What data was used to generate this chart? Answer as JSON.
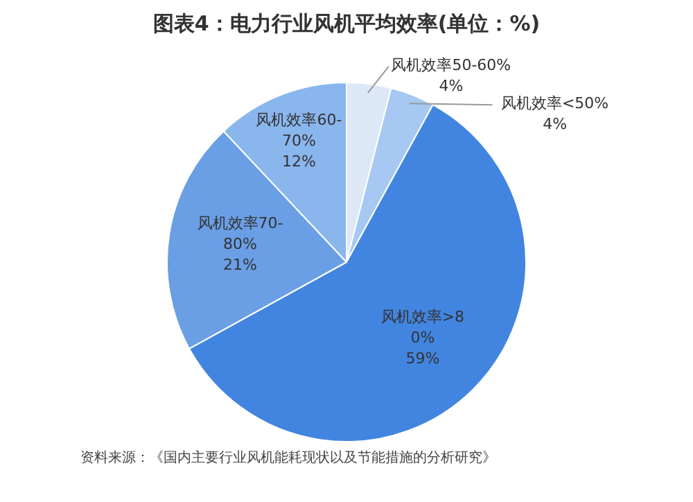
{
  "chart_data": {
    "type": "pie",
    "title": "图表4：电力行业风机平均效率(单位：%)",
    "categories": [
      "风机效率50-60%",
      "风机效率<50%",
      "风机效率>80%",
      "风机效率70-80%",
      "风机效率60-70%"
    ],
    "values": [
      4,
      4,
      59,
      21,
      12
    ],
    "colors": [
      "#dde8f7",
      "#a6c8f2",
      "#4285e0",
      "#6a9fe6",
      "#8ab6ee"
    ],
    "value_labels": [
      "4%",
      "4%",
      "59%",
      "21%",
      "12%"
    ],
    "legend": false,
    "annotations": [
      "资料来源：《国内主要行业风机能耗现状以及节能措施的分析研究》"
    ]
  }
}
